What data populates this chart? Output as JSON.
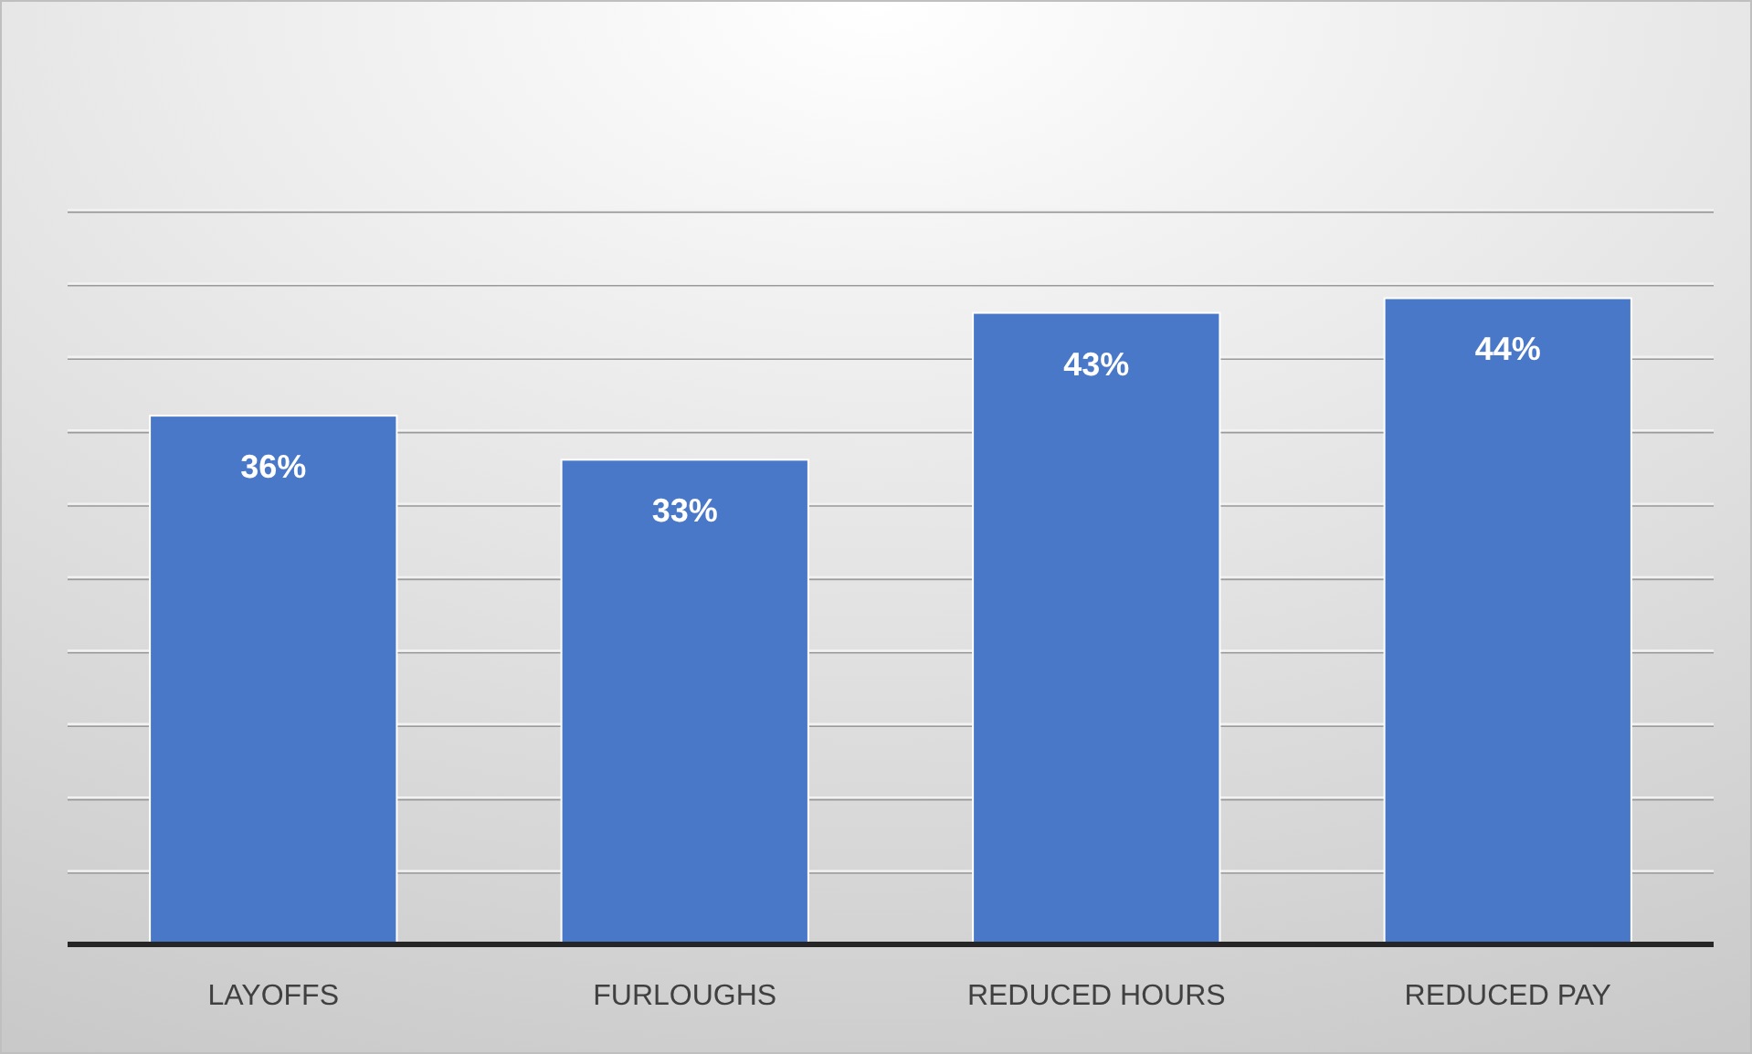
{
  "chart_data": {
    "type": "bar",
    "categories": [
      "LAYOFFS",
      "FURLOUGHS",
      "REDUCED HOURS",
      "REDUCED PAY"
    ],
    "values": [
      36,
      33,
      43,
      44
    ],
    "color": "#4a78c8",
    "data_labels": true,
    "value_labels": [
      "36%",
      "33%",
      "43%",
      "44%"
    ],
    "ylim": [
      0,
      50
    ],
    "yticks": [
      {
        "value": 0,
        "label": null
      },
      {
        "value": 5,
        "label": null
      },
      {
        "value": 10,
        "label": null
      },
      {
        "value": 15,
        "label": null
      },
      {
        "value": 20,
        "label": null
      },
      {
        "value": 25,
        "label": null
      },
      {
        "value": 30,
        "label": null
      },
      {
        "value": 35,
        "label": null
      },
      {
        "value": 40,
        "label": null
      },
      {
        "value": 45,
        "label": null
      },
      {
        "value": 50,
        "label": null
      }
    ],
    "grid": "y",
    "tick_labels": "x"
  }
}
